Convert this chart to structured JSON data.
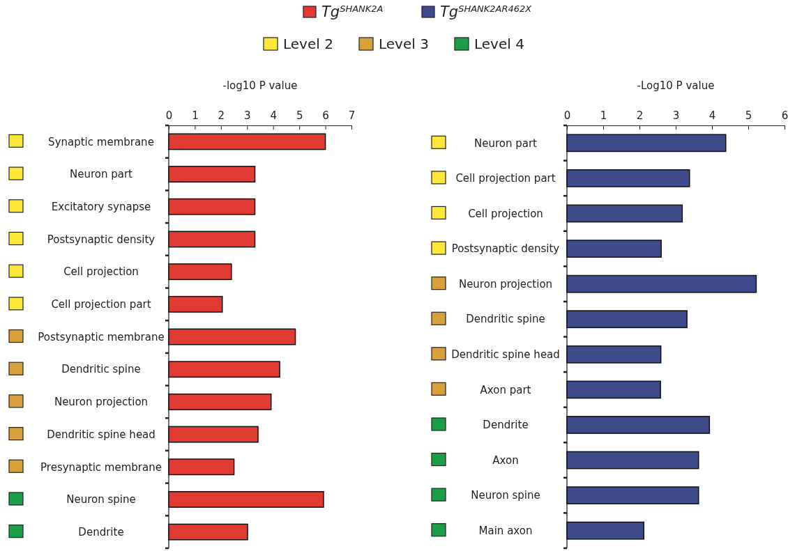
{
  "chart_data": [
    {
      "type": "bar",
      "orientation": "horizontal",
      "xlabel": "-log10 P value",
      "categories": [
        "Synaptic membrane",
        "Neuron part",
        "Excitatory synapse",
        "Postsynaptic density",
        "Cell projection",
        "Cell projection part",
        "Postsynaptic membrane",
        "Dendritic spine",
        "Neuron projection",
        "Dendritic spine head",
        "Presynaptic membrane",
        "Neuron spine",
        "Dendrite"
      ],
      "series": [
        {
          "name": "Tg$^{SHANK2A}$",
          "color": "#e03a33",
          "values": [
            6.0,
            3.3,
            3.3,
            3.3,
            2.4,
            2.05,
            4.85,
            4.25,
            3.92,
            3.42,
            2.5,
            5.93,
            3.02
          ]
        }
      ],
      "xlim": [
        0,
        7
      ],
      "xticks": [
        0,
        1,
        2,
        3,
        4,
        5,
        6,
        7
      ],
      "grid": false,
      "legend": "top",
      "annotations": [
        "Level 2",
        "Level 3",
        "Level 4"
      ]
    },
    {
      "type": "bar",
      "orientation": "horizontal",
      "xlabel": "-Log10 P value",
      "categories": [
        "Neuron part",
        "Cell projection part",
        "Cell projection",
        "Postsynaptic density",
        "Neuron projection",
        "Dendritic spine",
        "Dendritic spine head",
        "Axon part",
        "Dendrite",
        "Axon",
        "Neuron spine",
        "Main axon"
      ],
      "series": [
        {
          "name": "Tg$^{SHANK2AR462X}$",
          "color": "#3f4a8a",
          "values": [
            4.38,
            3.38,
            3.18,
            2.6,
            5.22,
            3.31,
            2.59,
            2.58,
            3.93,
            3.63,
            3.63,
            2.12
          ]
        }
      ],
      "xlim": [
        0,
        6
      ],
      "xticks": [
        0,
        1,
        2,
        3,
        4,
        5,
        6
      ],
      "grid": false,
      "legend": "top"
    }
  ]
}
